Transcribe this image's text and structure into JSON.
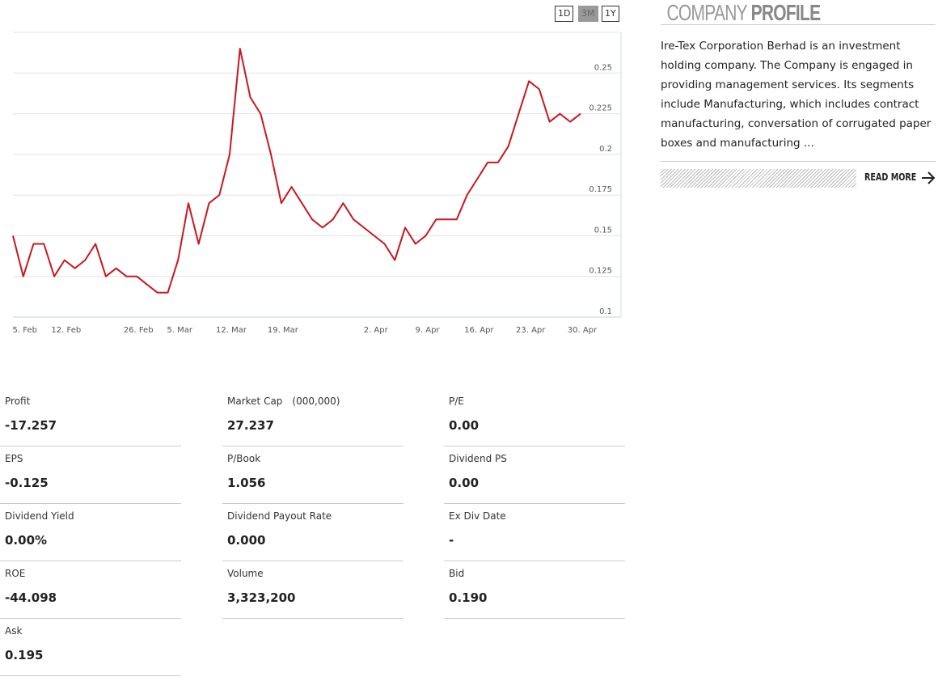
{
  "chart_data": {
    "type": "line",
    "categories": [
      null,
      "5. Feb",
      null,
      null,
      null,
      "12. Feb",
      null,
      null,
      null,
      null,
      null,
      null,
      "26. Feb",
      null,
      null,
      null,
      "5. Mar",
      null,
      null,
      null,
      null,
      "12. Mar",
      null,
      null,
      null,
      null,
      "19. Mar",
      null,
      null,
      null,
      null,
      null,
      null,
      null,
      null,
      "2. Apr",
      null,
      null,
      null,
      null,
      "9. Apr",
      null,
      null,
      null,
      null,
      "16. Apr",
      null,
      null,
      null,
      null,
      "23. Apr",
      null,
      null,
      null,
      null,
      "30. Apr"
    ],
    "series": [
      {
        "color": "#c8171e",
        "values": [
          0.15,
          0.125,
          0.145,
          0.145,
          0.125,
          0.135,
          0.13,
          0.135,
          0.145,
          0.125,
          0.13,
          0.125,
          0.125,
          0.12,
          0.115,
          0.115,
          0.135,
          0.17,
          0.145,
          0.17,
          0.175,
          0.2,
          0.265,
          0.235,
          0.225,
          0.2,
          0.17,
          0.18,
          0.17,
          0.16,
          0.155,
          0.16,
          0.17,
          0.16,
          0.155,
          0.15,
          0.145,
          0.135,
          0.155,
          0.145,
          0.15,
          0.16,
          0.16,
          0.16,
          0.175,
          0.185,
          0.195,
          0.195,
          0.205,
          0.225,
          0.245,
          0.24,
          0.22,
          0.225,
          0.22,
          0.225
        ]
      }
    ],
    "ylim": [
      0.1,
      0.275
    ],
    "yticks": [
      0.1,
      0.125,
      0.15,
      0.175,
      0.2,
      0.225,
      0.25
    ],
    "grid": true
  },
  "range_buttons": [
    "1D",
    "3M",
    "1Y"
  ],
  "active_range": 1,
  "profile": {
    "title_light": "COMPANY",
    "title_bold": "PROFILE",
    "text": "Ire-Tex Corporation Berhad is an investment holding company. The Company is engaged in providing management services. Its segments include Manufacturing, which includes contract manufacturing, conversation of corrugated paper boxes and manufacturing ...",
    "read_more": "READ MORE"
  },
  "stats": [
    {
      "label": "Profit",
      "value": "-17.257"
    },
    {
      "label": "Market Cap",
      "unit": "(000,000)",
      "value": "27.237"
    },
    {
      "label": "P/E",
      "value": "0.00"
    },
    {
      "label": "EPS",
      "value": "-0.125"
    },
    {
      "label": "P/Book",
      "value": "1.056"
    },
    {
      "label": "Dividend PS",
      "value": "0.00"
    },
    {
      "label": "Dividend Yield",
      "value": "0.00%"
    },
    {
      "label": "Dividend Payout Rate",
      "value": "0.000"
    },
    {
      "label": "Ex Div Date",
      "value": "-"
    },
    {
      "label": "ROE",
      "value": "-44.098"
    },
    {
      "label": "Volume",
      "value": "3,323,200"
    },
    {
      "label": "Bid",
      "value": "0.190"
    },
    {
      "label": "Ask",
      "value": "0.195"
    }
  ]
}
